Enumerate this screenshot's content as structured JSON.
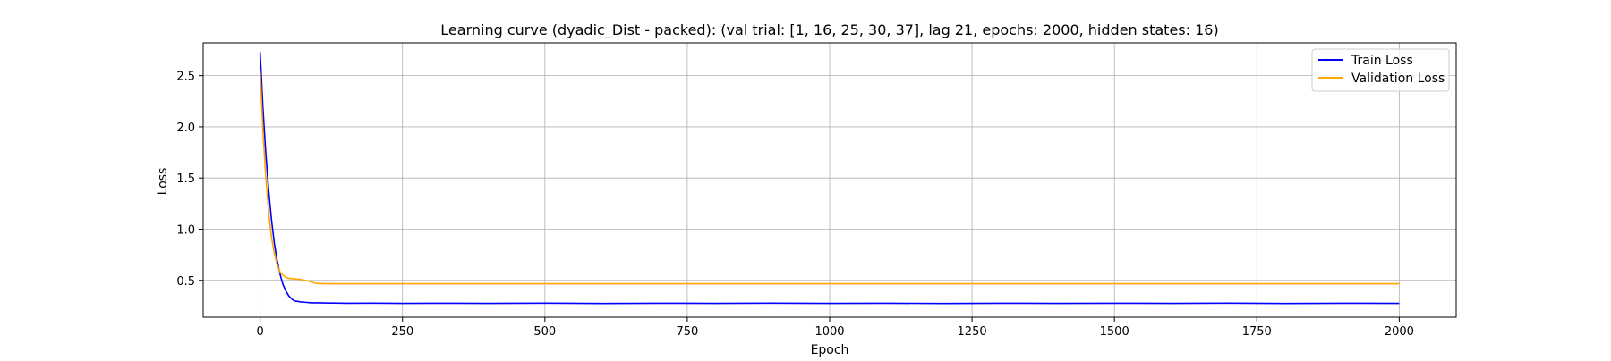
{
  "chart_data": {
    "type": "line",
    "title": "Learning curve (dyadic_Dist - packed): (val trial: [1, 16, 25, 30, 37], lag 21, epochs: 2000, hidden states: 16)",
    "xlabel": "Epoch",
    "ylabel": "Loss",
    "xlim": [
      -100,
      2100
    ],
    "ylim": [
      0.14,
      2.82
    ],
    "xticks": [
      0,
      250,
      500,
      750,
      1000,
      1250,
      1500,
      1750,
      2000
    ],
    "yticks": [
      0.5,
      1.0,
      1.5,
      2.0,
      2.5
    ],
    "xtick_labels": [
      "0",
      "250",
      "500",
      "750",
      "1000",
      "1250",
      "1500",
      "1750",
      "2000"
    ],
    "ytick_labels": [
      "0.5",
      "1.0",
      "1.5",
      "2.0",
      "2.5"
    ],
    "grid": true,
    "legend_position": "top-right",
    "series": [
      {
        "name": "Train Loss",
        "color": "#0000ff",
        "x": [
          0,
          5,
          10,
          15,
          20,
          25,
          30,
          35,
          40,
          45,
          50,
          55,
          60,
          70,
          80,
          90,
          100,
          125,
          150,
          200,
          250,
          300,
          400,
          500,
          600,
          700,
          800,
          900,
          1000,
          1100,
          1200,
          1300,
          1400,
          1500,
          1600,
          1700,
          1800,
          1900,
          2000
        ],
        "y": [
          2.73,
          2.18,
          1.74,
          1.38,
          1.09,
          0.86,
          0.69,
          0.56,
          0.46,
          0.4,
          0.35,
          0.32,
          0.3,
          0.29,
          0.285,
          0.28,
          0.28,
          0.278,
          0.276,
          0.277,
          0.275,
          0.276,
          0.275,
          0.277,
          0.274,
          0.276,
          0.275,
          0.277,
          0.275,
          0.276,
          0.274,
          0.276,
          0.275,
          0.276,
          0.275,
          0.277,
          0.274,
          0.276,
          0.275
        ]
      },
      {
        "name": "Validation Loss",
        "color": "#ffa500",
        "x": [
          0,
          5,
          10,
          15,
          20,
          25,
          30,
          35,
          40,
          45,
          50,
          60,
          70,
          80,
          90,
          95,
          100,
          110,
          120,
          150,
          200,
          500,
          1000,
          1500,
          2000
        ],
        "y": [
          2.55,
          1.95,
          1.5,
          1.16,
          0.92,
          0.76,
          0.65,
          0.58,
          0.55,
          0.53,
          0.52,
          0.515,
          0.51,
          0.5,
          0.485,
          0.475,
          0.47,
          0.468,
          0.467,
          0.467,
          0.467,
          0.467,
          0.467,
          0.467,
          0.467
        ]
      }
    ]
  }
}
